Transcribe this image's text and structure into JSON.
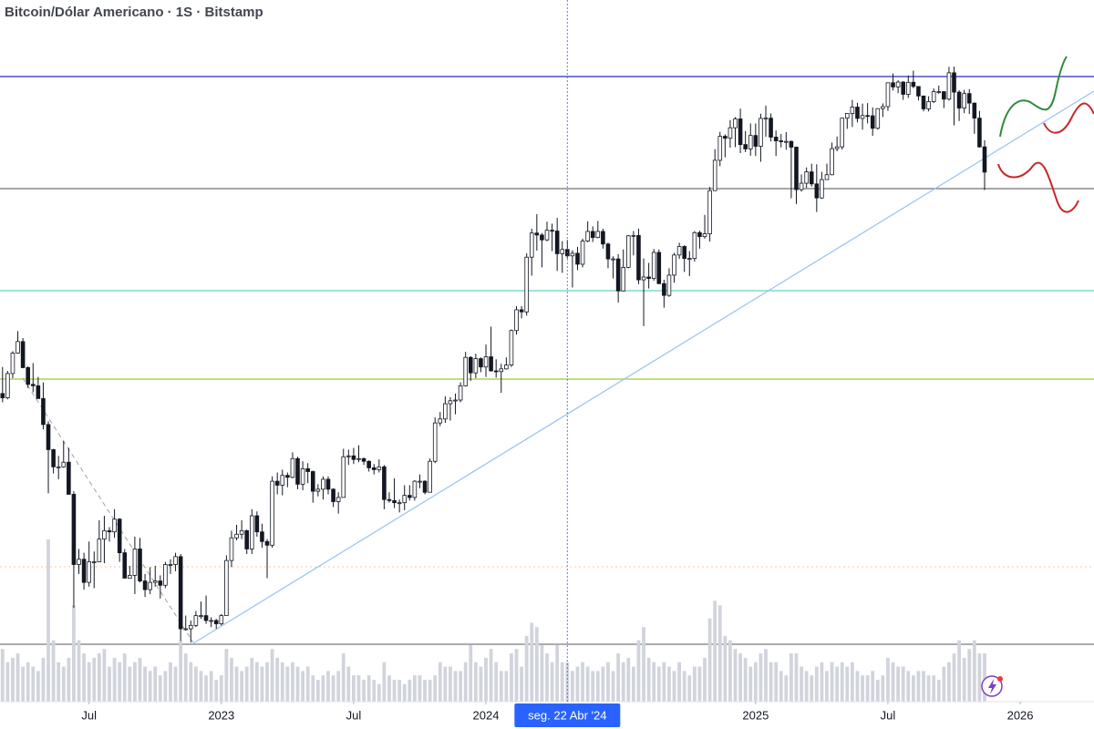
{
  "chart_data": {
    "type": "candlestick",
    "title": "Bitcoin/Dólar Americano · 1S · Bitstamp",
    "open": [
      38.4,
      37.8,
      41.3,
      44.5,
      46.4,
      42.2,
      39.7,
      39.5,
      37.7,
      34.3,
      31.3,
      29.4,
      29.4,
      29.9,
      26.6,
      20.6,
      21.0,
      19.3,
      20.8,
      20.8,
      22.6,
      23.3,
      23.2,
      24.3,
      21.5,
      19.6,
      19.8,
      21.8,
      19.4,
      18.8,
      19.3,
      19.4,
      19.1,
      20.6,
      20.6,
      21.2,
      16.3,
      16.3,
      16.5,
      17.1,
      17.1,
      16.8,
      16.8,
      16.6,
      17.1,
      20.9,
      22.7,
      23.0,
      23.3,
      21.8,
      24.6,
      23.2,
      22.4,
      22.1,
      27.9,
      27.5,
      28.5,
      28.3,
      30.3,
      27.6,
      29.2,
      28.9,
      26.9,
      27.1,
      28.1,
      27.1,
      25.9,
      26.3,
      30.5,
      30.6,
      30.2,
      30.3,
      30.0,
      29.3,
      29.1,
      29.4,
      26.1,
      26.0,
      25.8,
      25.8,
      26.5,
      26.3,
      27.9,
      27.9,
      26.8,
      30.0,
      34.5,
      35.0,
      37.0,
      37.4,
      37.5,
      39.5,
      43.8,
      41.4,
      43.6,
      42.3,
      43.9,
      41.7,
      41.6,
      42.0,
      42.6,
      48.3,
      52.1,
      51.7,
      63.1,
      68.9,
      68.4,
      67.2,
      69.6,
      69.4,
      63.9,
      64.9,
      63.4,
      64.0,
      61.5,
      66.9,
      69.3,
      67.8,
      69.3,
      66.2,
      62.7,
      62.7,
      55.8,
      60.8,
      68.2,
      68.3,
      58.1,
      58.7,
      58.4,
      64.2,
      57.3,
      54.9,
      59.1,
      63.6,
      65.6,
      62.8,
      62.8,
      69.0,
      68.0,
      68.7,
      80.4,
      89.8,
      98.0,
      97.3,
      101.1,
      104.4,
      95.1,
      93.6,
      98.3,
      94.5,
      104.6,
      104.7,
      97.7,
      96.4,
      96.1,
      96.2,
      94.2,
      80.7,
      82.6,
      86.1,
      82.4,
      78.3,
      83.7,
      85.2,
      93.7,
      94.3,
      104.7,
      106.5,
      109.0,
      104.6,
      105.7,
      105.6,
      100.9,
      108.4,
      109.2,
      119.1,
      117.3,
      119.4,
      114.2,
      119.3,
      117.5,
      113.5,
      108.3,
      111.2,
      115.3,
      115.3,
      112.2,
      123.5,
      115.1,
      108.6,
      114.5,
      110.6,
      104.7,
      94.3
    ],
    "high": [
      42.3,
      41.7,
      44.8,
      48.2,
      47.0,
      42.4,
      42.9,
      40.8,
      40.0,
      34.7,
      31.4,
      30.6,
      32.3,
      31.5,
      26.9,
      21.8,
      21.5,
      22.4,
      21.6,
      24.2,
      24.6,
      23.6,
      25.2,
      24.4,
      21.8,
      20.5,
      22.8,
      22.7,
      19.9,
      20.4,
      20.5,
      19.8,
      20.8,
      21.0,
      21.5,
      21.4,
      17.1,
      16.8,
      17.4,
      18.0,
      18.4,
      17.0,
      16.9,
      17.2,
      21.3,
      23.3,
      23.8,
      24.2,
      23.4,
      25.2,
      25.0,
      23.9,
      22.6,
      28.4,
      28.8,
      29.1,
      28.8,
      31.0,
      30.5,
      30.0,
      29.8,
      29.0,
      27.6,
      28.4,
      28.4,
      27.2,
      26.8,
      31.4,
      31.3,
      31.5,
      31.8,
      30.4,
      30.1,
      29.7,
      30.2,
      29.6,
      26.8,
      28.2,
      26.1,
      27.5,
      27.5,
      28.0,
      28.6,
      28.0,
      30.3,
      35.2,
      35.9,
      38.0,
      37.9,
      38.4,
      40.0,
      44.7,
      44.0,
      44.4,
      43.8,
      45.9,
      49.0,
      43.5,
      42.8,
      43.8,
      48.5,
      52.8,
      52.8,
      64.0,
      70.0,
      73.8,
      68.9,
      71.8,
      71.3,
      72.8,
      66.9,
      67.2,
      64.7,
      65.5,
      67.5,
      71.9,
      70.6,
      72.0,
      70.0,
      66.5,
      63.3,
      63.8,
      64.9,
      68.4,
      69.4,
      70.0,
      62.8,
      61.8,
      65.0,
      64.9,
      58.1,
      60.6,
      64.1,
      66.5,
      65.9,
      64.5,
      69.4,
      69.5,
      73.6,
      81.5,
      93.5,
      99.6,
      98.7,
      104.0,
      105.1,
      108.4,
      99.9,
      102.7,
      102.7,
      106.4,
      109.6,
      106.5,
      100.1,
      98.8,
      99.5,
      96.5,
      94.4,
      85.3,
      87.5,
      88.7,
      88.5,
      86.1,
      88.7,
      95.8,
      97.9,
      104.8,
      106.6,
      111.9,
      110.7,
      110.4,
      110.6,
      108.9,
      108.5,
      110.5,
      119.1,
      123.2,
      120.2,
      119.8,
      122.3,
      124.5,
      117.6,
      113.6,
      113.4,
      116.7,
      117.9,
      115.5,
      126.2,
      126.3,
      115.9,
      116.1,
      116.4,
      110.8,
      107.5,
      96.6
    ],
    "low": [
      37.2,
      37.6,
      40.6,
      44.4,
      42.1,
      39.2,
      38.6,
      37.7,
      33.7,
      26.7,
      28.7,
      28.1,
      29.3,
      26.6,
      17.6,
      19.9,
      18.8,
      19.0,
      18.9,
      20.8,
      20.7,
      22.4,
      22.7,
      20.8,
      19.6,
      19.6,
      18.5,
      19.3,
      18.3,
      18.5,
      19.0,
      18.2,
      18.9,
      19.9,
      20.1,
      15.6,
      16.2,
      15.5,
      16.4,
      16.9,
      16.6,
      16.4,
      16.3,
      16.5,
      17.1,
      20.4,
      22.5,
      22.6,
      21.4,
      21.4,
      22.8,
      21.9,
      19.6,
      21.9,
      26.6,
      26.5,
      27.3,
      28.2,
      27.1,
      27.0,
      27.7,
      25.8,
      26.4,
      26.1,
      26.6,
      25.4,
      24.8,
      26.3,
      29.6,
      29.7,
      29.9,
      29.6,
      28.9,
      28.6,
      28.8,
      25.2,
      25.8,
      25.3,
      24.9,
      25.1,
      26.0,
      26.0,
      27.2,
      26.6,
      26.8,
      29.8,
      34.1,
      34.5,
      34.8,
      35.6,
      37.2,
      39.4,
      40.2,
      40.6,
      41.5,
      40.8,
      41.6,
      40.7,
      38.5,
      41.9,
      42.3,
      47.6,
      50.5,
      51.0,
      59.0,
      64.6,
      60.8,
      66.9,
      64.5,
      60.0,
      59.6,
      62.8,
      56.5,
      60.2,
      60.8,
      66.6,
      66.7,
      67.6,
      65.1,
      60.6,
      58.4,
      53.5,
      55.7,
      60.6,
      63.5,
      57.2,
      49.1,
      56.3,
      57.9,
      57.2,
      52.5,
      54.6,
      57.5,
      62.7,
      59.8,
      58.9,
      62.1,
      65.1,
      67.5,
      66.8,
      80.3,
      87.9,
      90.8,
      94.0,
      94.2,
      92.2,
      92.5,
      91.3,
      91.2,
      89.3,
      97.8,
      96.2,
      91.2,
      94.1,
      93.3,
      78.2,
      76.6,
      80.1,
      81.2,
      81.6,
      74.4,
      78.0,
      83.6,
      85.0,
      92.8,
      93.4,
      100.7,
      101.4,
      103.1,
      100.4,
      102.7,
      98.2,
      100.4,
      105.1,
      107.5,
      115.8,
      114.7,
      111.9,
      112.7,
      116.8,
      111.7,
      107.3,
      107.3,
      110.6,
      114.4,
      108.6,
      111.6,
      102.0,
      103.6,
      106.6,
      106.3,
      98.9,
      94.0,
      80.6
    ],
    "close": [
      37.8,
      41.3,
      44.5,
      46.4,
      42.2,
      39.7,
      39.5,
      37.7,
      34.3,
      31.3,
      29.4,
      29.4,
      29.9,
      26.6,
      20.6,
      21.0,
      19.3,
      20.8,
      20.8,
      22.6,
      23.3,
      23.2,
      24.3,
      21.5,
      19.6,
      19.8,
      21.8,
      19.4,
      18.8,
      19.3,
      19.4,
      19.1,
      20.6,
      20.6,
      21.2,
      16.3,
      16.3,
      16.5,
      17.1,
      17.1,
      16.8,
      16.8,
      16.6,
      17.1,
      20.9,
      22.7,
      23.0,
      23.3,
      21.8,
      24.6,
      23.2,
      22.4,
      22.1,
      27.9,
      27.5,
      28.5,
      28.3,
      30.3,
      27.6,
      29.2,
      28.9,
      26.9,
      27.1,
      28.1,
      27.1,
      25.9,
      26.3,
      30.5,
      30.6,
      30.2,
      30.3,
      30.0,
      29.3,
      29.1,
      29.4,
      26.1,
      26.0,
      25.8,
      25.8,
      26.5,
      26.3,
      27.9,
      27.9,
      26.8,
      30.0,
      34.5,
      35.0,
      37.0,
      37.4,
      37.5,
      39.5,
      43.8,
      41.4,
      43.6,
      42.3,
      43.9,
      41.7,
      41.6,
      42.0,
      42.6,
      48.3,
      52.1,
      51.7,
      63.1,
      68.9,
      68.4,
      67.2,
      69.6,
      69.4,
      63.9,
      64.9,
      63.4,
      64.0,
      61.5,
      66.9,
      69.3,
      67.8,
      69.3,
      66.2,
      62.7,
      62.7,
      55.8,
      60.8,
      68.2,
      68.3,
      58.1,
      58.7,
      58.4,
      64.2,
      57.3,
      54.9,
      59.1,
      63.6,
      65.6,
      62.8,
      62.8,
      69.0,
      68.0,
      68.7,
      80.4,
      89.8,
      98.0,
      97.3,
      101.1,
      104.4,
      95.1,
      93.6,
      98.3,
      94.5,
      104.6,
      104.7,
      97.7,
      96.4,
      96.1,
      96.2,
      94.2,
      80.7,
      82.6,
      86.1,
      82.4,
      78.3,
      83.7,
      85.2,
      93.7,
      94.3,
      104.7,
      106.5,
      109.0,
      104.6,
      105.7,
      105.6,
      100.9,
      108.4,
      109.2,
      119.1,
      117.3,
      119.4,
      114.2,
      119.3,
      117.5,
      113.5,
      108.3,
      111.2,
      115.3,
      115.3,
      112.2,
      123.5,
      115.1,
      108.6,
      114.5,
      110.6,
      104.7,
      94.3,
      86.0
    ],
    "volume": [
      60,
      45,
      50,
      55,
      40,
      45,
      40,
      35,
      50,
      185,
      70,
      45,
      40,
      50,
      110,
      70,
      55,
      45,
      50,
      55,
      60,
      40,
      50,
      45,
      55,
      40,
      45,
      50,
      40,
      35,
      40,
      30,
      35,
      45,
      40,
      70,
      55,
      45,
      40,
      35,
      30,
      35,
      25,
      30,
      60,
      50,
      40,
      35,
      40,
      50,
      45,
      40,
      45,
      60,
      50,
      45,
      40,
      45,
      40,
      35,
      40,
      30,
      25,
      30,
      35,
      30,
      35,
      55,
      40,
      30,
      30,
      25,
      30,
      25,
      20,
      45,
      30,
      25,
      25,
      20,
      25,
      30,
      30,
      25,
      25,
      30,
      45,
      40,
      40,
      35,
      35,
      45,
      65,
      45,
      40,
      50,
      60,
      45,
      35,
      35,
      55,
      60,
      40,
      75,
      90,
      85,
      65,
      55,
      45,
      65,
      45,
      45,
      35,
      40,
      45,
      40,
      35,
      35,
      40,
      45,
      35,
      55,
      45,
      50,
      40,
      70,
      85,
      50,
      45,
      40,
      45,
      40,
      35,
      45,
      35,
      30,
      40,
      40,
      50,
      95,
      115,
      110,
      75,
      70,
      60,
      55,
      50,
      40,
      45,
      55,
      60,
      45,
      45,
      35,
      30,
      55,
      55,
      40,
      35,
      30,
      40,
      45,
      35,
      45,
      40,
      45,
      40,
      45,
      35,
      30,
      30,
      35,
      25,
      30,
      50,
      45,
      40,
      40,
      35,
      30,
      35,
      35,
      30,
      30,
      25,
      40,
      45,
      55,
      70,
      50,
      60,
      70,
      55,
      55
    ],
    "up_color": "#ffffff",
    "down_color": "#131722",
    "volume_color": "#d1d4dc",
    "log_scale": true,
    "ylim": [
      12.5,
      161
    ],
    "y2lim": [
      0,
      800
    ],
    "xlim": [
      -0.5,
      214.5
    ],
    "xticks": [
      {
        "value": 17,
        "label": "Jul"
      },
      {
        "value": 43,
        "label": "2023"
      },
      {
        "value": 69,
        "label": "Jul"
      },
      {
        "value": 95,
        "label": "2024"
      },
      {
        "value": 148,
        "label": "2025"
      },
      {
        "value": 174,
        "label": "Jul"
      },
      {
        "value": 200,
        "label": "2026"
      }
    ],
    "crosshair": {
      "value": 111,
      "label": "seg. 22 Abr '24"
    }
  }
}
